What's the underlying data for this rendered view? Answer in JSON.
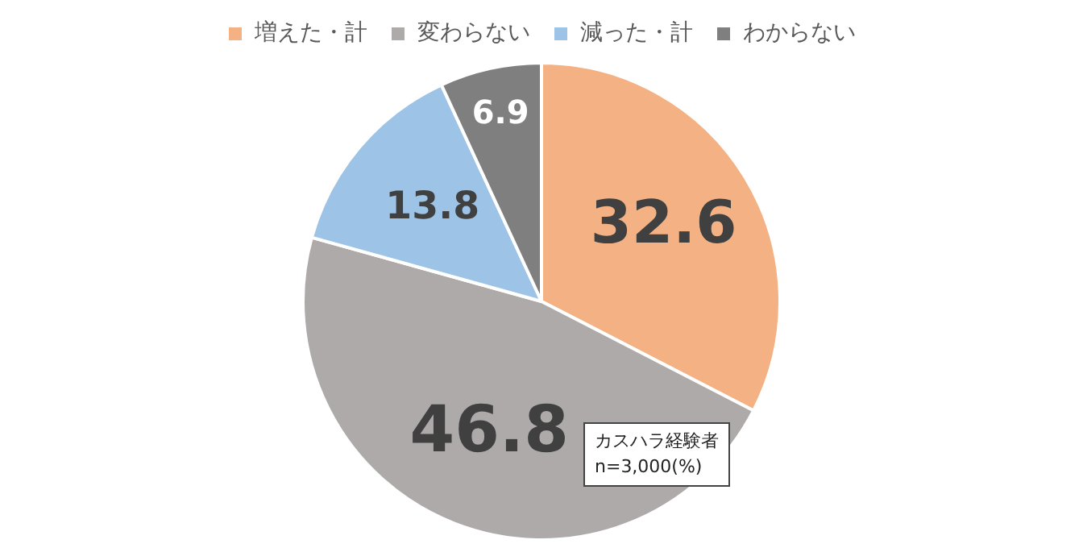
{
  "chart_data": {
    "type": "pie",
    "categories": [
      "増えた・計",
      "変わらない",
      "減った・計",
      "わからない"
    ],
    "values": [
      32.6,
      46.8,
      13.8,
      6.9
    ],
    "colors": [
      "#f4b183",
      "#aeaaaa",
      "#9dc3e6",
      "#7f7f7f"
    ],
    "data_labels": true,
    "legend": "top",
    "annotations": [
      "カスハラ経験者\nn=3,000(%)"
    ]
  }
}
